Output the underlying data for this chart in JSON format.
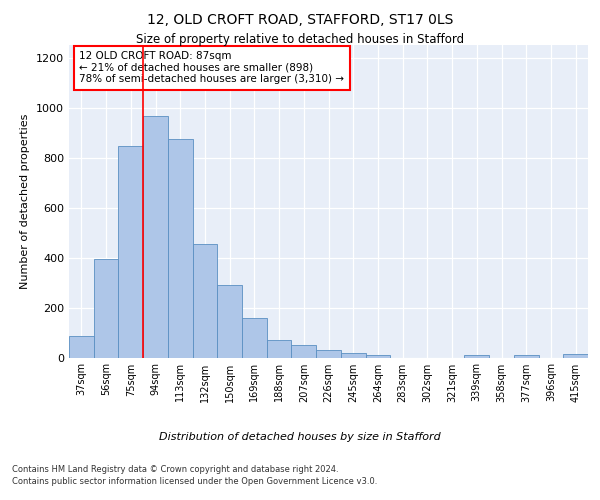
{
  "title1": "12, OLD CROFT ROAD, STAFFORD, ST17 0LS",
  "title2": "Size of property relative to detached houses in Stafford",
  "xlabel": "Distribution of detached houses by size in Stafford",
  "ylabel": "Number of detached properties",
  "categories": [
    "37sqm",
    "56sqm",
    "75sqm",
    "94sqm",
    "113sqm",
    "132sqm",
    "150sqm",
    "169sqm",
    "188sqm",
    "207sqm",
    "226sqm",
    "245sqm",
    "264sqm",
    "283sqm",
    "302sqm",
    "321sqm",
    "339sqm",
    "358sqm",
    "377sqm",
    "396sqm",
    "415sqm"
  ],
  "values": [
    85,
    395,
    845,
    965,
    875,
    455,
    290,
    160,
    70,
    50,
    30,
    20,
    10,
    0,
    0,
    0,
    10,
    0,
    10,
    0,
    15
  ],
  "bar_color": "#aec6e8",
  "bar_edge_color": "#5a8fc2",
  "vline_x": 2.5,
  "vline_color": "red",
  "annotation_text": "12 OLD CROFT ROAD: 87sqm\n← 21% of detached houses are smaller (898)\n78% of semi-detached houses are larger (3,310) →",
  "annotation_box_color": "white",
  "annotation_box_edge_color": "red",
  "ylim": [
    0,
    1250
  ],
  "yticks": [
    0,
    200,
    400,
    600,
    800,
    1000,
    1200
  ],
  "bg_color": "#e8eef8",
  "footer_line1": "Contains HM Land Registry data © Crown copyright and database right 2024.",
  "footer_line2": "Contains public sector information licensed under the Open Government Licence v3.0."
}
